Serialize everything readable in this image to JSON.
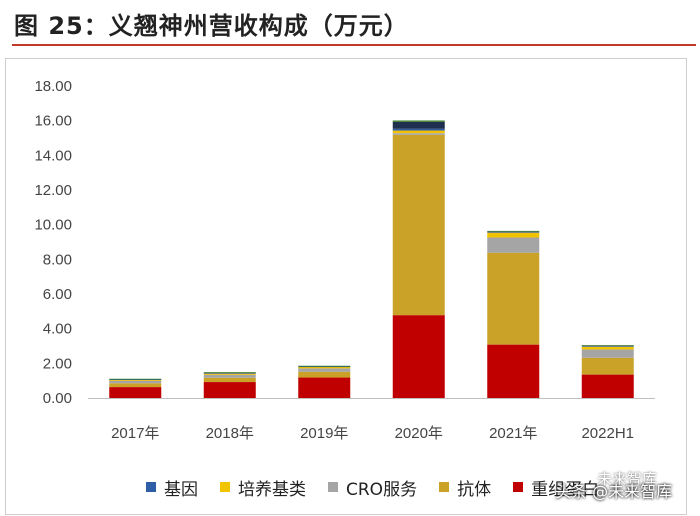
{
  "header": {
    "title": "图 25：义翘神州营收构成（万元）"
  },
  "chart_data": {
    "type": "bar",
    "stacked": true,
    "title": "义翘神州营收构成（万元）",
    "categories": [
      "2017年",
      "2018年",
      "2019年",
      "2020年",
      "2021年",
      "2022H1"
    ],
    "ylim": [
      0,
      18
    ],
    "yticks": [
      "0.00",
      "2.00",
      "4.00",
      "6.00",
      "8.00",
      "10.00",
      "12.00",
      "14.00",
      "16.00",
      "18.00"
    ],
    "series": [
      {
        "name": "重组蛋白",
        "color": "#c00000",
        "values": [
          0.63,
          0.92,
          1.18,
          4.78,
          3.08,
          1.35
        ]
      },
      {
        "name": "抗体",
        "color": "#c9a227",
        "values": [
          0.22,
          0.25,
          0.33,
          10.4,
          5.3,
          0.97
        ]
      },
      {
        "name": "CRO服务",
        "color": "#a5a5a5",
        "values": [
          0.14,
          0.17,
          0.2,
          0.1,
          0.88,
          0.48
        ]
      },
      {
        "name": "培养基类",
        "color": "#f2c300",
        "values": [
          0.06,
          0.07,
          0.08,
          0.15,
          0.28,
          0.16
        ]
      },
      {
        "name": "基因",
        "color": "#2e5ea8",
        "values": [
          0.03,
          0.04,
          0.04,
          0.1,
          0.06,
          0.05
        ]
      },
      {
        "name": "",
        "color": "#1f2f4f",
        "values": [
          0,
          0,
          0,
          0.4,
          0,
          0
        ]
      },
      {
        "name": "",
        "color": "#3d7a2a",
        "values": [
          0.03,
          0.04,
          0.03,
          0.08,
          0.04,
          0.04
        ]
      }
    ],
    "legend": {
      "placement": "bottom",
      "order": [
        "基因",
        "培养基类",
        "CRO服务",
        "抗体",
        "重组蛋白"
      ]
    }
  },
  "legend": {
    "items": [
      {
        "label": "基因",
        "color": "#2e5ea8"
      },
      {
        "label": "培养基类",
        "color": "#f2c300"
      },
      {
        "label": "CRO服务",
        "color": "#a5a5a5"
      },
      {
        "label": "抗体",
        "color": "#c9a227"
      },
      {
        "label": "重组蛋白",
        "color": "#c00000"
      }
    ]
  },
  "watermark": {
    "text": "头条 @未来智库",
    "logo": "未来智库"
  }
}
